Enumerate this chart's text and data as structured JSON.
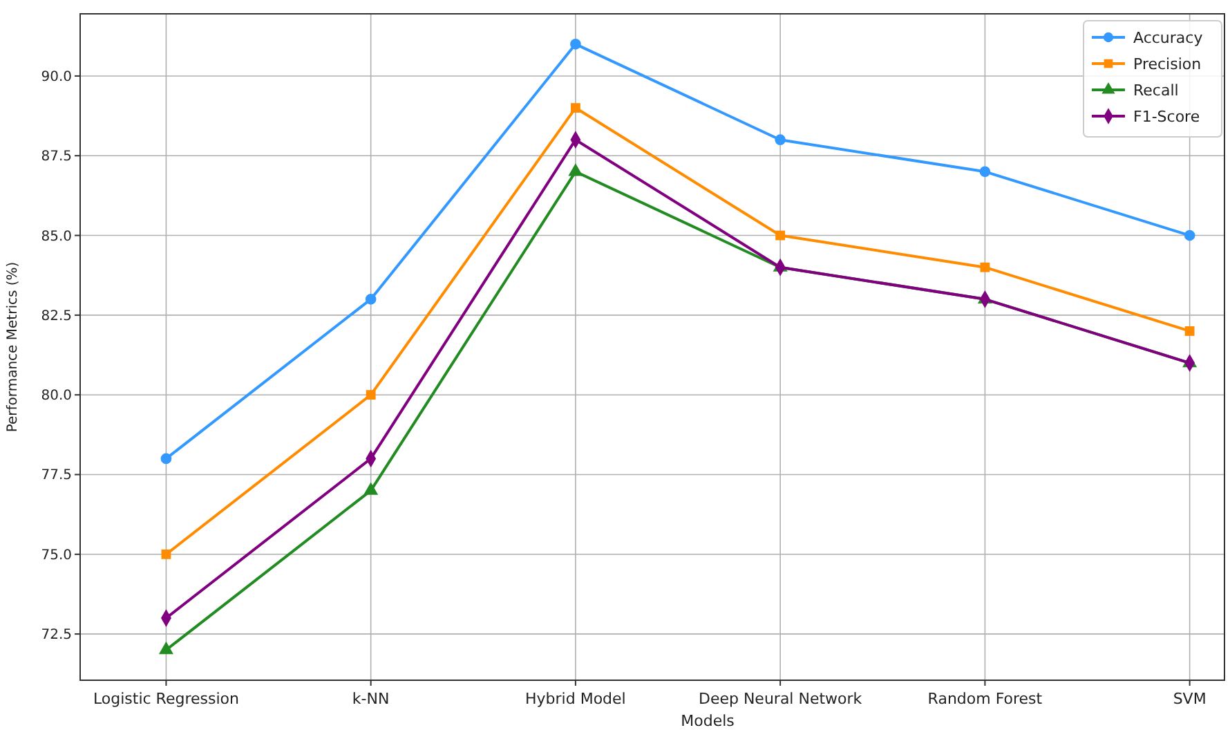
{
  "chart_data": {
    "type": "line",
    "xlabel": "Models",
    "ylabel": "Performance Metrics (%)",
    "categories": [
      "Logistic Regression",
      "k-NN",
      "Hybrid Model",
      "Deep Neural Network",
      "Random Forest",
      "SVM"
    ],
    "series": [
      {
        "name": "Accuracy",
        "color": "#3399ff",
        "marker": "circle",
        "values": [
          78,
          83,
          91,
          88,
          87,
          85
        ]
      },
      {
        "name": "Precision",
        "color": "#ff8c00",
        "marker": "square",
        "values": [
          75,
          80,
          89,
          85,
          84,
          82
        ]
      },
      {
        "name": "Recall",
        "color": "#228b22",
        "marker": "triangle",
        "values": [
          72,
          77,
          87,
          84,
          83,
          81
        ]
      },
      {
        "name": "F1-Score",
        "color": "#800080",
        "marker": "diamond",
        "values": [
          73,
          78,
          88,
          84,
          83,
          81
        ]
      }
    ],
    "ylim": [
      71.05,
      91.95
    ],
    "yticks": [
      {
        "value": 72.5,
        "label": "72.5"
      },
      {
        "value": 75,
        "label": "75.0"
      },
      {
        "value": 77.5,
        "label": "77.5"
      },
      {
        "value": 80,
        "label": "80.0"
      },
      {
        "value": 82.5,
        "label": "82.5"
      },
      {
        "value": 85,
        "label": "85.0"
      },
      {
        "value": 87.5,
        "label": "87.5"
      },
      {
        "value": 90,
        "label": "90.0"
      }
    ],
    "grid": true,
    "legend": "top right"
  }
}
